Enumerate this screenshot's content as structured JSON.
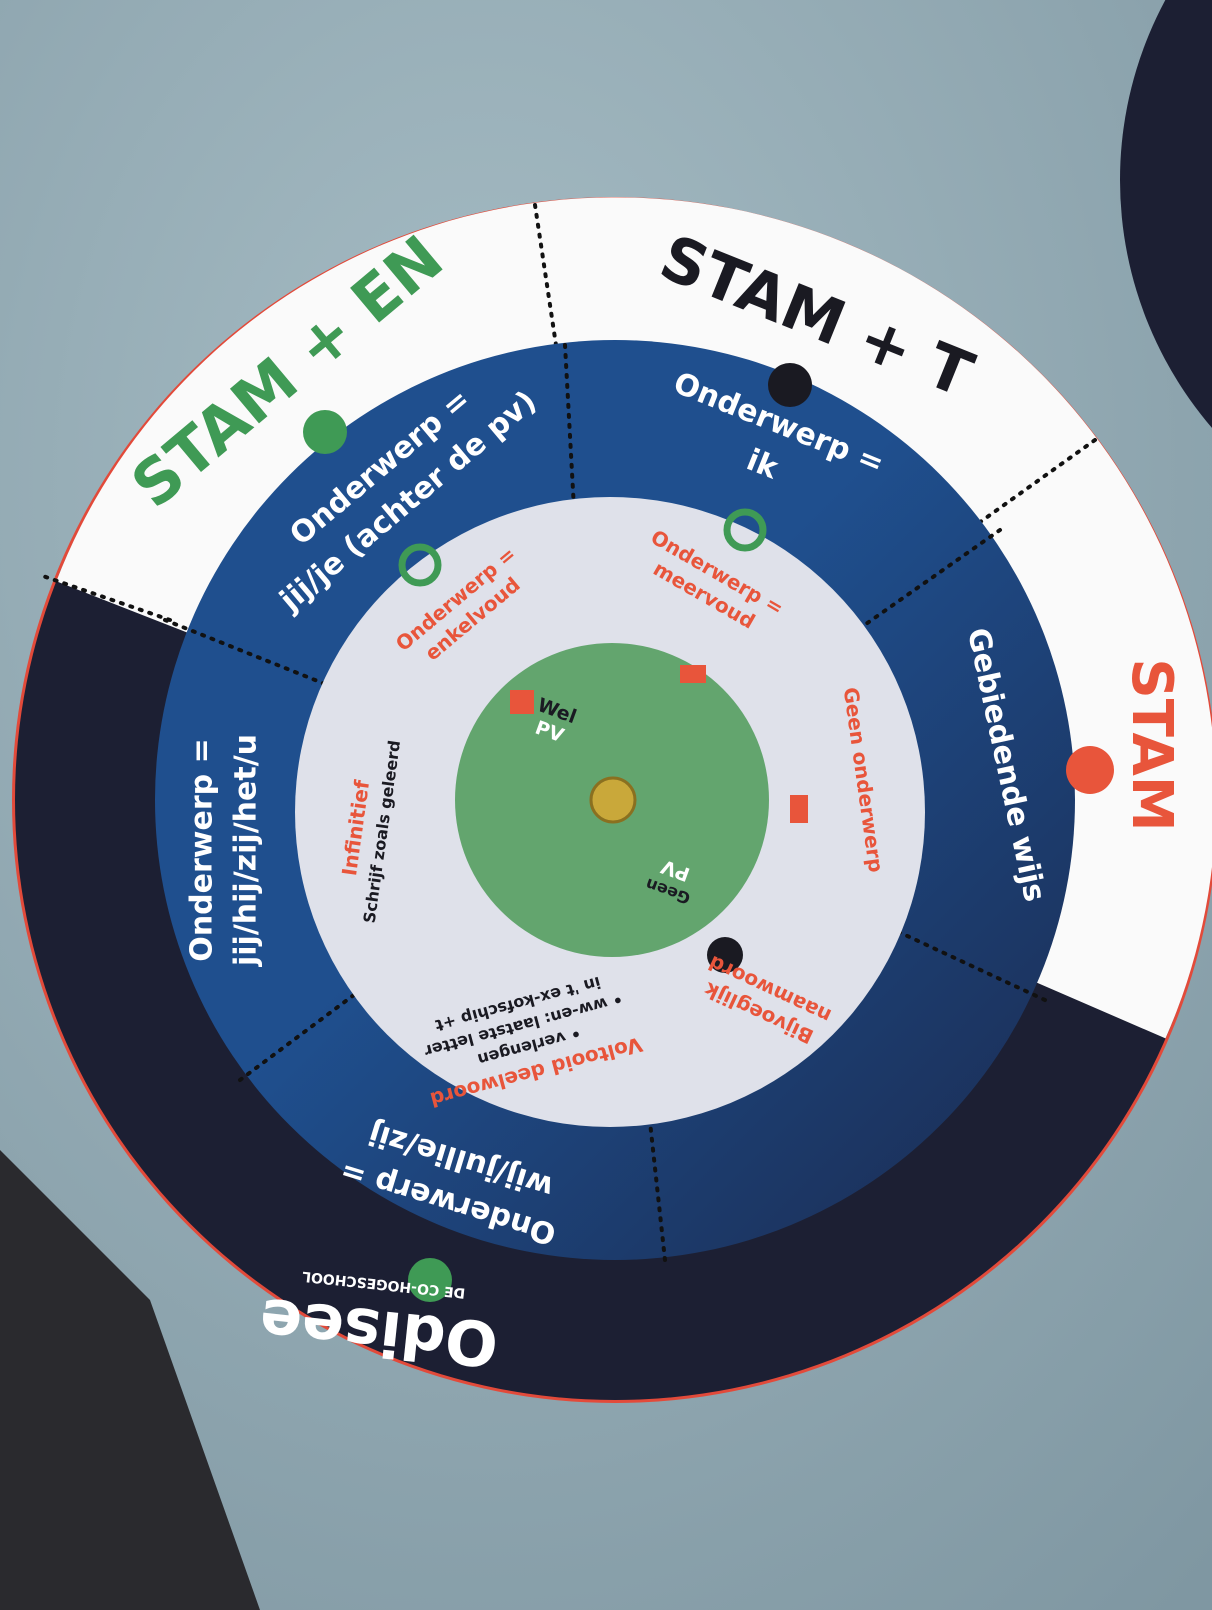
{
  "outer_ring": {
    "labels": [
      "STAM + EN",
      "STAM + T",
      "STAM"
    ]
  },
  "middle_ring": {
    "segments": [
      [
        "Onderwerp =",
        "jij/je (achter de pv)"
      ],
      [
        "Onderwerp =",
        "ik"
      ],
      [
        "Gebiedende wijs"
      ],
      [
        "Onderwerp =",
        "jij/hij/zij/het/u"
      ],
      [
        "Onderwerp =",
        "wij/jullie/zij"
      ]
    ]
  },
  "inner_ring": {
    "segments": [
      [
        "Onderwerp =",
        "enkelvoud"
      ],
      [
        "Onderwerp =",
        "meervoud"
      ],
      [
        "Geen onderwerp"
      ],
      [
        "Bijvoeglijk",
        "naamwoord"
      ],
      [
        "Voltooid deelwoord",
        "• verlengen",
        "• ww-en: laatste letter",
        "in 't ex-kofschip +t"
      ],
      [
        "Infinitief",
        "Schrijf zoals geleerd"
      ]
    ]
  },
  "center": {
    "top": [
      "Wel",
      "PV"
    ],
    "bottom": [
      "Geen",
      "PV"
    ]
  },
  "brand": {
    "name": "Odisee",
    "tagline": "DE CO-HOGESCHOOL"
  }
}
